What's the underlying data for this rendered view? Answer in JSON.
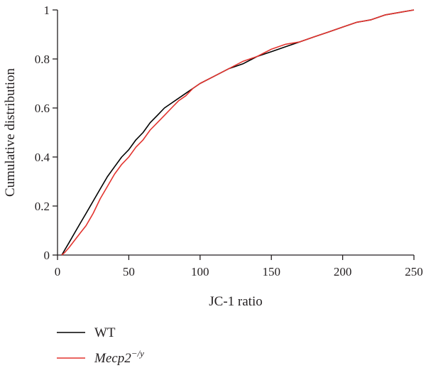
{
  "chart_data": {
    "type": "line",
    "xlabel": "JC-1 ratio",
    "ylabel": "Cumulative distribution",
    "xlim": [
      0,
      250
    ],
    "ylim": [
      0,
      1
    ],
    "xticks": [
      0,
      50,
      100,
      150,
      200,
      250
    ],
    "yticks": [
      0,
      0.2,
      0.4,
      0.6,
      0.8,
      1
    ],
    "ytick_labels": [
      "0",
      "0.2",
      "0.4",
      "0.6",
      "0.8",
      "1"
    ],
    "grid": false,
    "legend_position": "bottom-left",
    "series": [
      {
        "name": "WT",
        "color": "#000000",
        "x": [
          3,
          5,
          8,
          12,
          16,
          20,
          25,
          30,
          35,
          40,
          45,
          50,
          55,
          60,
          65,
          70,
          75,
          80,
          85,
          90,
          95,
          100,
          110,
          120,
          130,
          140,
          150,
          160,
          170,
          180,
          190,
          200,
          210,
          220,
          230,
          240,
          250
        ],
        "y": [
          0,
          0.02,
          0.05,
          0.09,
          0.13,
          0.17,
          0.22,
          0.27,
          0.32,
          0.36,
          0.4,
          0.43,
          0.47,
          0.5,
          0.54,
          0.57,
          0.6,
          0.62,
          0.64,
          0.66,
          0.68,
          0.7,
          0.73,
          0.76,
          0.78,
          0.81,
          0.83,
          0.85,
          0.87,
          0.89,
          0.91,
          0.93,
          0.95,
          0.96,
          0.98,
          0.99,
          1.0
        ]
      },
      {
        "name": "Mecp2",
        "name_sup": "−/y",
        "color": "#e3342f",
        "x": [
          3,
          5,
          8,
          12,
          16,
          20,
          25,
          30,
          35,
          40,
          45,
          50,
          55,
          60,
          65,
          70,
          75,
          80,
          85,
          90,
          95,
          100,
          110,
          120,
          130,
          140,
          150,
          160,
          170,
          180,
          190,
          200,
          210,
          220,
          230,
          240,
          250
        ],
        "y": [
          0,
          0.01,
          0.03,
          0.06,
          0.09,
          0.12,
          0.17,
          0.23,
          0.28,
          0.33,
          0.37,
          0.4,
          0.44,
          0.47,
          0.51,
          0.54,
          0.57,
          0.6,
          0.63,
          0.65,
          0.68,
          0.7,
          0.73,
          0.76,
          0.79,
          0.81,
          0.84,
          0.86,
          0.87,
          0.89,
          0.91,
          0.93,
          0.95,
          0.96,
          0.98,
          0.99,
          1.0
        ]
      }
    ]
  }
}
